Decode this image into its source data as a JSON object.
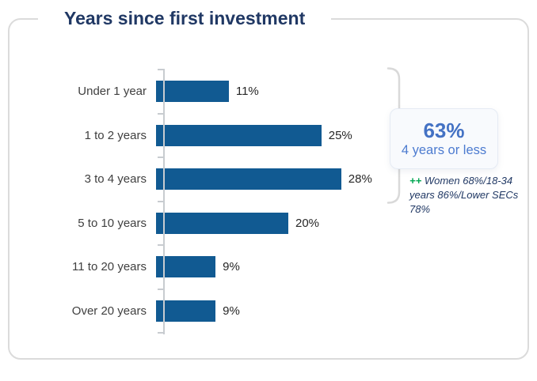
{
  "title": "Years since first investment",
  "chart_data": {
    "type": "bar",
    "orientation": "horizontal",
    "title": "Years since first investment",
    "categories": [
      "Under 1 year",
      "1 to 2 years",
      "3 to 4 years",
      "5 to 10 years",
      "11 to 20 years",
      "Over 20 years"
    ],
    "values": [
      11,
      25,
      28,
      20,
      9,
      9
    ],
    "value_labels": [
      "11%",
      "25%",
      "28%",
      "20%",
      "9%",
      "9%"
    ],
    "unit": "%",
    "xlim": [
      0,
      30
    ],
    "grid": false,
    "legend": false,
    "bar_color": "#115A92",
    "annotations": {
      "bracket_groups_categories": [
        "Under 1 year",
        "1 to 2 years",
        "3 to 4 years"
      ],
      "callout_value": "63%",
      "callout_label": "4 years or less",
      "note": "++ Women 68%/18-34 years 86%/Lower SECs 78%"
    }
  },
  "callout": {
    "value": "63%",
    "label": "4 years or less"
  },
  "note": {
    "marker": "++",
    "text": "Women 68%/18-34 years 86%/Lower SECs 78%"
  },
  "colors": {
    "bar": "#115A92",
    "title": "#203864",
    "callout": "#4472C4",
    "calloutSub": "#4C7BD0",
    "green": "#00A651",
    "noteText": "#203864",
    "axis": "#C8CCD0",
    "cardBorder": "#DBDBDB",
    "label": "#3F3F3F",
    "value": "#262626",
    "calloutBg": "#F8FAFD",
    "calloutBorder": "#E5EBF4",
    "bracket": "#D9D9D9"
  }
}
